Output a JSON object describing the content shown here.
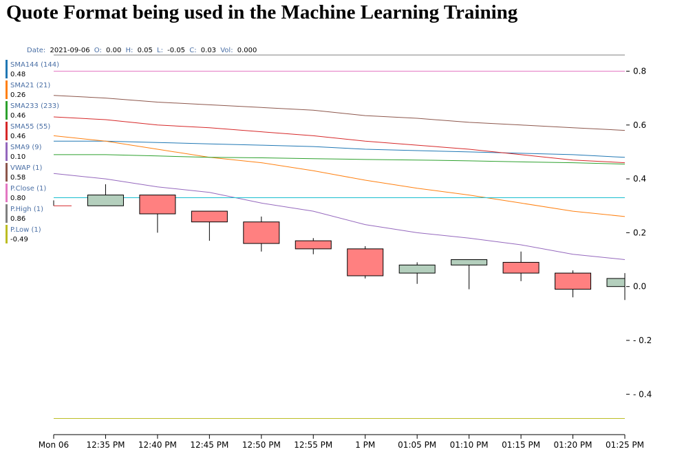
{
  "page": {
    "title": "Quote Format being used in the Machine Learning Training"
  },
  "ohlc_tooltip": {
    "date_label": "Date:",
    "date": "2021-09-06",
    "open_label": "O:",
    "open": "0.00",
    "high_label": "H:",
    "high": "0.05",
    "low_label": "L:",
    "low": "-0.05",
    "close_label": "C:",
    "close": "0.03",
    "vol_label": "Vol:",
    "vol": "0.000"
  },
  "colors": {
    "up": "#b4cfbd",
    "down": "#ff8080"
  },
  "chart_data": {
    "type": "candlestick",
    "ylim": [
      -0.55,
      0.86
    ],
    "yticks": [
      0.8,
      0.6,
      0.4,
      0.2,
      0.0,
      -0.2,
      -0.4
    ],
    "ytick_labels": [
      "0.8",
      "0.6",
      "0.4",
      "0.2",
      "0.0",
      "- 0.2",
      "- 0.4"
    ],
    "x_tick_labels": [
      "Mon 06",
      "12:35 PM",
      "12:40 PM",
      "12:45 PM",
      "12:50 PM",
      "12:55 PM",
      "1 PM",
      "01:05 PM",
      "01:10 PM",
      "01:15 PM",
      "01:20 PM",
      "01:25 PM"
    ],
    "candles": [
      {
        "o": 0.3,
        "h": 0.32,
        "l": 0.3,
        "c": 0.3
      },
      {
        "o": 0.3,
        "h": 0.38,
        "l": 0.3,
        "c": 0.34
      },
      {
        "o": 0.34,
        "h": 0.34,
        "l": 0.2,
        "c": 0.27
      },
      {
        "o": 0.28,
        "h": 0.28,
        "l": 0.17,
        "c": 0.24
      },
      {
        "o": 0.24,
        "h": 0.26,
        "l": 0.13,
        "c": 0.16
      },
      {
        "o": 0.17,
        "h": 0.18,
        "l": 0.12,
        "c": 0.14
      },
      {
        "o": 0.14,
        "h": 0.15,
        "l": 0.03,
        "c": 0.04
      },
      {
        "o": 0.05,
        "h": 0.09,
        "l": 0.01,
        "c": 0.08
      },
      {
        "o": 0.08,
        "h": 0.1,
        "l": -0.01,
        "c": 0.1
      },
      {
        "o": 0.09,
        "h": 0.13,
        "l": 0.02,
        "c": 0.05
      },
      {
        "o": 0.05,
        "h": 0.06,
        "l": -0.04,
        "c": -0.01
      },
      {
        "o": 0.0,
        "h": 0.05,
        "l": -0.05,
        "c": 0.03
      }
    ],
    "series": [
      {
        "name": "SMA144 (144)",
        "last": "0.48",
        "color": "#1f77b4",
        "values": [
          0.54,
          0.54,
          0.535,
          0.53,
          0.525,
          0.52,
          0.51,
          0.505,
          0.5,
          0.495,
          0.49,
          0.48
        ]
      },
      {
        "name": "SMA21 (21)",
        "last": "0.26",
        "color": "#ff7f0e",
        "values": [
          0.56,
          0.54,
          0.51,
          0.48,
          0.46,
          0.43,
          0.395,
          0.365,
          0.34,
          0.31,
          0.28,
          0.26
        ]
      },
      {
        "name": "SMA233 (233)",
        "last": "0.46",
        "color": "#2ca02c",
        "values": [
          0.49,
          0.49,
          0.485,
          0.48,
          0.478,
          0.475,
          0.472,
          0.47,
          0.467,
          0.463,
          0.46,
          0.455
        ]
      },
      {
        "name": "SMA55 (55)",
        "last": "0.46",
        "color": "#d62728",
        "values": [
          0.63,
          0.62,
          0.6,
          0.59,
          0.575,
          0.56,
          0.54,
          0.525,
          0.51,
          0.49,
          0.47,
          0.46
        ]
      },
      {
        "name": "SMA9 (9)",
        "last": "0.10",
        "color": "#9467bd",
        "values": [
          0.42,
          0.4,
          0.37,
          0.35,
          0.31,
          0.28,
          0.23,
          0.2,
          0.18,
          0.155,
          0.12,
          0.1
        ]
      },
      {
        "name": "VWAP (1)",
        "last": "0.58",
        "color": "#8c564b",
        "values": [
          0.71,
          0.7,
          0.685,
          0.675,
          0.665,
          0.655,
          0.635,
          0.625,
          0.61,
          0.6,
          0.59,
          0.58
        ]
      },
      {
        "name": "P.Close (1)",
        "last": "0.80",
        "color": "#e377c2",
        "values": [
          0.8,
          0.8,
          0.8,
          0.8,
          0.8,
          0.8,
          0.8,
          0.8,
          0.8,
          0.8,
          0.8,
          0.8
        ]
      },
      {
        "name": "P.High (1)",
        "last": "0.86",
        "color": "#7f7f7f",
        "values": [
          0.86,
          0.86,
          0.86,
          0.86,
          0.86,
          0.86,
          0.86,
          0.86,
          0.86,
          0.86,
          0.86,
          0.86
        ]
      },
      {
        "name": "P.Low (1)",
        "last": "-0.49",
        "color": "#bcbd22",
        "values": [
          -0.49,
          -0.49,
          -0.49,
          -0.49,
          -0.49,
          -0.49,
          -0.49,
          -0.49,
          -0.49,
          -0.49,
          -0.49,
          -0.49
        ]
      }
    ],
    "reference_line": {
      "value": 0.33,
      "color": "#17becf"
    }
  }
}
